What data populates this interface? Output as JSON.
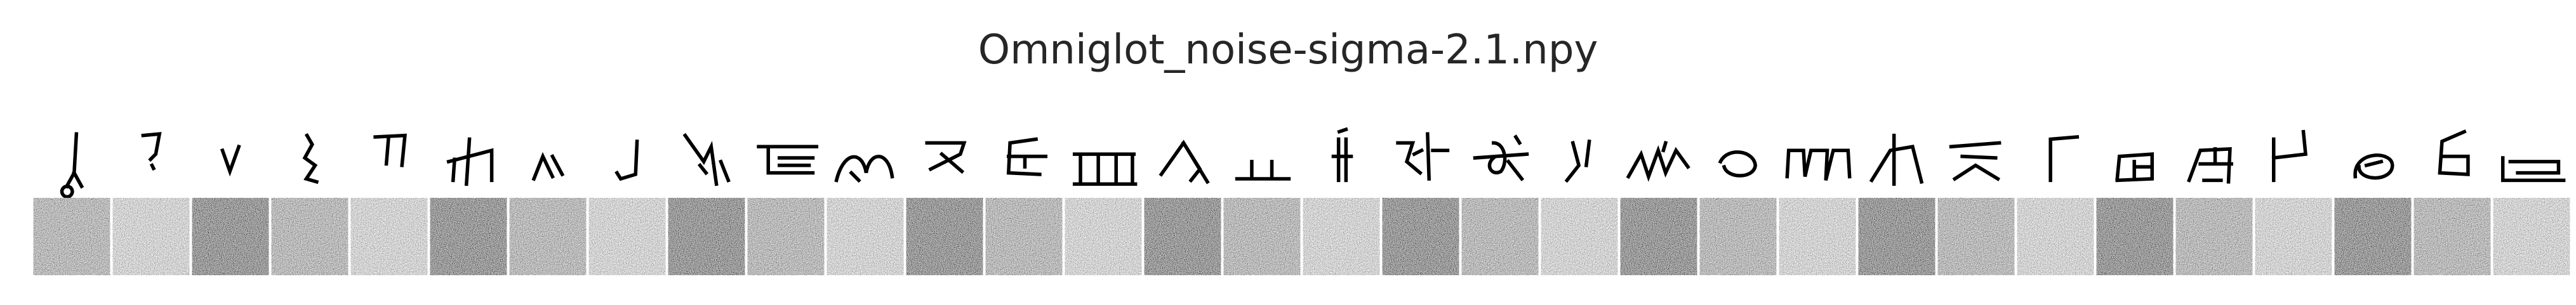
{
  "figure": {
    "title": "Omniglot_noise-sigma-2.1.npy",
    "columns": 32,
    "rows": [
      "clean-character",
      "noisy-character"
    ],
    "noise_sigma": 2.1,
    "colors": {
      "background": "#ffffff",
      "ink": "#000000",
      "noise_mid": "#8c8c8c"
    }
  }
}
